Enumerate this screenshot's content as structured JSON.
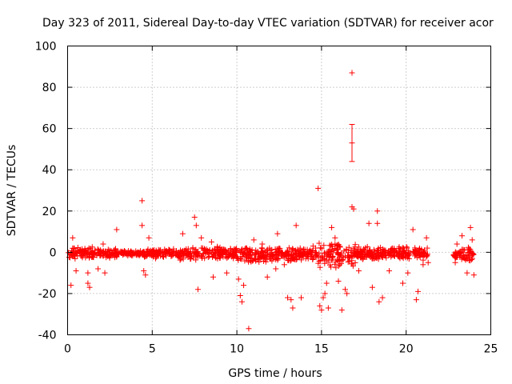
{
  "chart_data": {
    "type": "scatter",
    "title": "Day 323 of 2011, Sidereal Day-to-day VTEC variation (SDTVAR) for receiver acor",
    "xlabel": "GPS time / hours",
    "ylabel": "SDTVAR / TECUs",
    "xlim": [
      0,
      25
    ],
    "ylim": [
      -40,
      100
    ],
    "xticks": [
      0,
      5,
      10,
      15,
      20,
      25
    ],
    "yticks": [
      -40,
      -20,
      0,
      20,
      40,
      60,
      80,
      100
    ],
    "xtick_labels": [
      "0",
      "5",
      "10",
      "15",
      "20",
      "25"
    ],
    "ytick_labels": [
      "-40",
      "-20",
      "0",
      "20",
      "40",
      "60",
      "80",
      "100"
    ],
    "grid": true,
    "marker": "+",
    "color": "#ff0000",
    "series": [
      {
        "name": "SDTVAR",
        "bands": [
          {
            "x0": 0.0,
            "x1": 1.5,
            "ymin": -4,
            "ymax": 3
          },
          {
            "x0": 1.5,
            "x1": 3.0,
            "ymin": -3,
            "ymax": 2
          },
          {
            "x0": 3.0,
            "x1": 4.5,
            "ymin": -2,
            "ymax": 1
          },
          {
            "x0": 4.5,
            "x1": 6.5,
            "ymin": -3,
            "ymax": 2
          },
          {
            "x0": 6.5,
            "x1": 10.0,
            "ymin": -4,
            "ymax": 3
          },
          {
            "x0": 10.0,
            "x1": 12.0,
            "ymin": -5,
            "ymax": 3
          },
          {
            "x0": 12.0,
            "x1": 14.8,
            "ymin": -5,
            "ymax": 3
          },
          {
            "x0": 14.8,
            "x1": 17.0,
            "ymin": -8,
            "ymax": 5
          },
          {
            "x0": 17.0,
            "x1": 21.3,
            "ymin": -4,
            "ymax": 3
          },
          {
            "x0": 22.8,
            "x1": 24.0,
            "ymin": -5,
            "ymax": 3
          }
        ],
        "points": [
          [
            0.2,
            -16
          ],
          [
            0.3,
            7
          ],
          [
            0.5,
            -9
          ],
          [
            1.2,
            -10
          ],
          [
            1.2,
            -15
          ],
          [
            1.3,
            -17
          ],
          [
            1.8,
            -8
          ],
          [
            2.1,
            4
          ],
          [
            2.2,
            -10
          ],
          [
            2.9,
            11
          ],
          [
            4.4,
            25
          ],
          [
            4.4,
            13
          ],
          [
            4.5,
            -9
          ],
          [
            4.6,
            -11
          ],
          [
            4.8,
            7
          ],
          [
            5.2,
            -3
          ],
          [
            6.8,
            9
          ],
          [
            7.5,
            17
          ],
          [
            7.6,
            13
          ],
          [
            7.7,
            -18
          ],
          [
            7.9,
            7
          ],
          [
            8.5,
            5
          ],
          [
            8.6,
            -12
          ],
          [
            9.4,
            -10
          ],
          [
            10.1,
            -13
          ],
          [
            10.2,
            -21
          ],
          [
            10.3,
            -24
          ],
          [
            10.4,
            -16
          ],
          [
            10.7,
            -37
          ],
          [
            11.0,
            6
          ],
          [
            11.5,
            4
          ],
          [
            11.8,
            -12
          ],
          [
            12.3,
            -8
          ],
          [
            12.4,
            9
          ],
          [
            12.8,
            -6
          ],
          [
            13.0,
            -22
          ],
          [
            13.2,
            -23
          ],
          [
            13.3,
            -27
          ],
          [
            13.5,
            13
          ],
          [
            13.8,
            -22
          ],
          [
            14.5,
            3
          ],
          [
            14.8,
            31
          ],
          [
            14.9,
            -26
          ],
          [
            15.0,
            -28
          ],
          [
            15.1,
            -22
          ],
          [
            15.2,
            -20
          ],
          [
            15.3,
            -15
          ],
          [
            15.4,
            -27
          ],
          [
            15.6,
            12
          ],
          [
            15.8,
            7
          ],
          [
            16.0,
            -14
          ],
          [
            16.2,
            -28
          ],
          [
            16.4,
            -18
          ],
          [
            16.5,
            -20
          ],
          [
            16.8,
            87
          ],
          [
            16.8,
            22
          ],
          [
            16.9,
            21
          ],
          [
            17.2,
            -9
          ],
          [
            17.8,
            14
          ],
          [
            18.0,
            -17
          ],
          [
            18.3,
            20
          ],
          [
            18.3,
            14
          ],
          [
            18.4,
            -24
          ],
          [
            18.6,
            -22
          ],
          [
            19.0,
            -9
          ],
          [
            19.8,
            -15
          ],
          [
            20.1,
            -10
          ],
          [
            20.4,
            11
          ],
          [
            20.6,
            -23
          ],
          [
            20.7,
            -19
          ],
          [
            21.0,
            -6
          ],
          [
            21.2,
            7
          ],
          [
            21.3,
            -5
          ],
          [
            22.9,
            -5
          ],
          [
            23.0,
            4
          ],
          [
            23.3,
            8
          ],
          [
            23.6,
            -10
          ],
          [
            23.8,
            12
          ],
          [
            23.9,
            6
          ],
          [
            24.0,
            -11
          ]
        ],
        "error_bars": [
          {
            "x": 16.8,
            "y": 53,
            "ymin": 44,
            "ymax": 62
          }
        ]
      }
    ]
  }
}
